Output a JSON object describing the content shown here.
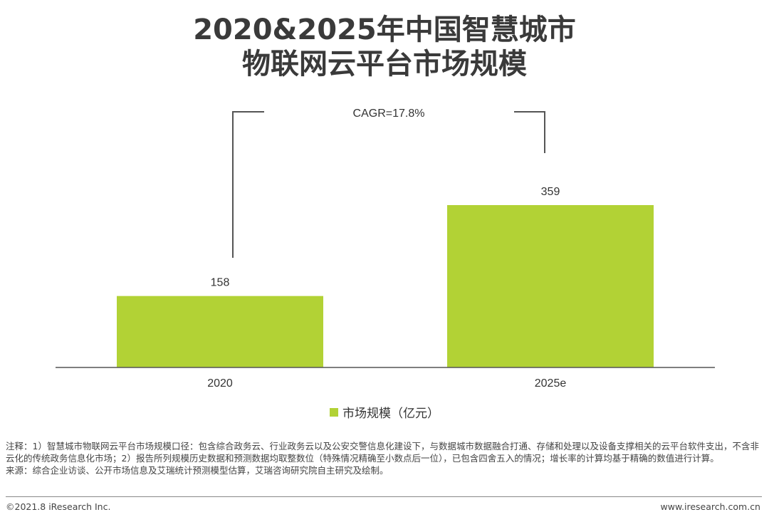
{
  "header": {
    "title_line1": "2020&2025年中国智慧城市",
    "title_line2": "物联网云平台市场规模"
  },
  "chart_data": {
    "type": "bar",
    "categories": [
      "2020",
      "2025e"
    ],
    "series": [
      {
        "name": "市场规模（亿元）",
        "values": [
          158,
          359
        ],
        "color": "#B2D235"
      }
    ],
    "data_labels": [
      "158",
      "359"
    ],
    "annotation": "CAGR=17.8%",
    "ylim": [
      0,
      420
    ],
    "grid": false,
    "legend_position": "bottom"
  },
  "legend": {
    "label": "市场规模（亿元）"
  },
  "notes": {
    "note": "注释：1）智慧城市物联网云平台市场规模口径：包含综合政务云、行业政务云以及公安交警信息化建设下，与数据城市数据融合打通、存储和处理以及设备支撑相关的云平台软件支出，不含非云化的传统政务信息化市场；2）报告所列规模历史数据和预测数据均取整数位（特殊情况精确至小数点后一位），已包含四舍五入的情况；增长率的计算均基于精确的数值进行计算。",
    "source": "来源：综合企业访谈、公开市场信息及艾瑞统计预测模型估算，艾瑞咨询研究院自主研究及绘制。"
  },
  "footer": {
    "copyright": "©2021.8 iResearch Inc.",
    "website": "www.iresearch.com.cn"
  }
}
